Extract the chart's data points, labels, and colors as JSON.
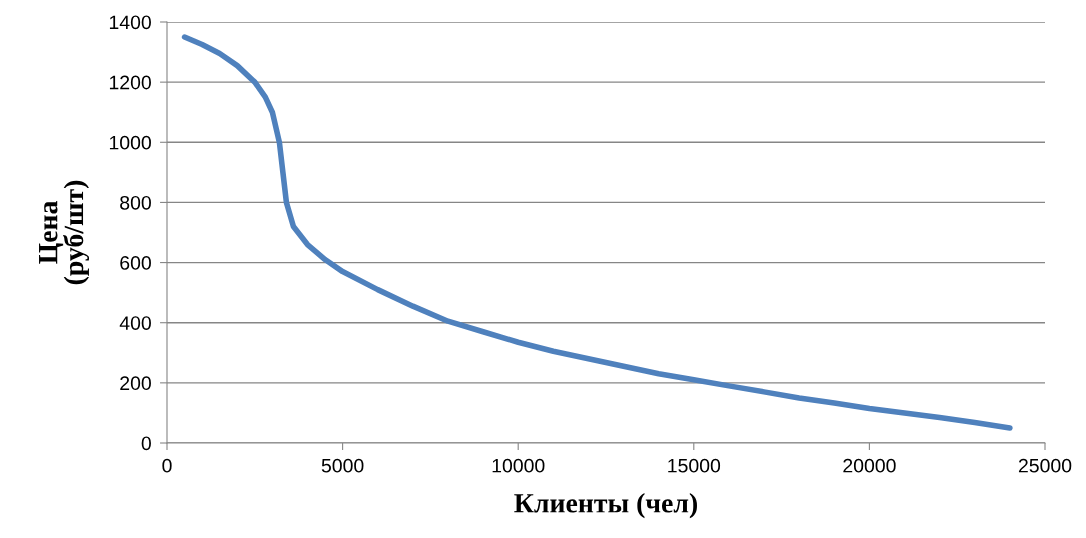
{
  "chart_data": {
    "type": "line",
    "xlabel": "Клиенты (чел)",
    "ylabel": "Цена\n(руб/шт)",
    "x": [
      500,
      1000,
      1500,
      2000,
      2500,
      2800,
      3000,
      3200,
      3300,
      3400,
      3600,
      4000,
      4500,
      5000,
      6000,
      7000,
      8000,
      9000,
      10000,
      11000,
      12000,
      13000,
      14000,
      15000,
      16000,
      17000,
      18000,
      19000,
      20000,
      21000,
      22000,
      23000,
      24000
    ],
    "series": [
      {
        "color": "#4f81bd",
        "values": [
          1350,
          1325,
          1295,
          1255,
          1200,
          1150,
          1100,
          1000,
          900,
          800,
          720,
          660,
          610,
          570,
          510,
          455,
          405,
          370,
          335,
          305,
          280,
          255,
          230,
          210,
          190,
          170,
          150,
          133,
          115,
          100,
          85,
          68,
          50
        ]
      }
    ],
    "xlim": [
      0,
      25000
    ],
    "xticks": [
      0,
      5000,
      10000,
      15000,
      20000,
      25000
    ],
    "ylim": [
      0,
      1400
    ],
    "yticks": [
      0,
      200,
      400,
      600,
      800,
      1000,
      1200,
      1400
    ],
    "grid": "y",
    "marker": "none",
    "line_style": "solid",
    "legend": false
  }
}
